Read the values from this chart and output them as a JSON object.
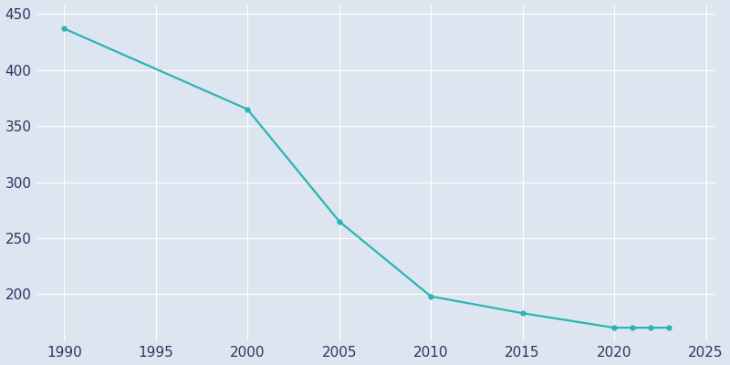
{
  "years": [
    1990,
    2000,
    2005,
    2010,
    2015,
    2020,
    2021,
    2022,
    2023
  ],
  "population": [
    437,
    365,
    265,
    198,
    183,
    170,
    170,
    170,
    170
  ],
  "line_color": "#2ab5b5",
  "marker_color": "#2ab5b5",
  "bg_color": "#dde5f0",
  "axes_bg_color": "#dde5f0",
  "grid_color": "#ffffff",
  "xlabel": "",
  "ylabel": "",
  "xlim": [
    1988.5,
    2025.5
  ],
  "ylim": [
    158,
    458
  ],
  "yticks": [
    200,
    250,
    300,
    350,
    400,
    450
  ],
  "xticks": [
    1990,
    1995,
    2000,
    2005,
    2010,
    2015,
    2020,
    2025
  ],
  "figsize": [
    8.0,
    4.0
  ],
  "dpi": 100
}
